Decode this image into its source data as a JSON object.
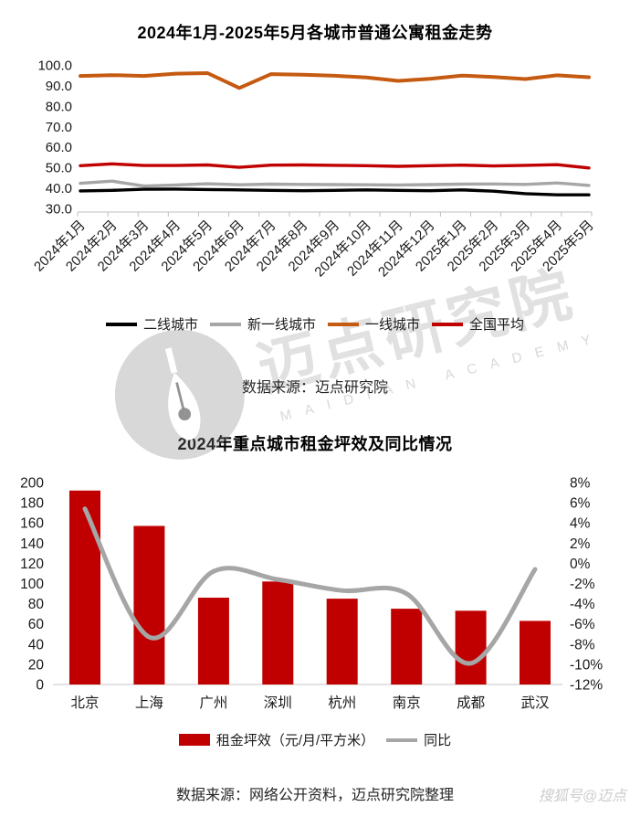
{
  "chart_data": [
    {
      "type": "line",
      "title": "2024年1月-2025年5月各城市普通公寓租金走势",
      "source": "数据来源：迈点研究院",
      "x_categories": [
        "2024年1月",
        "2024年2月",
        "2024年3月",
        "2024年4月",
        "2024年5月",
        "2024年6月",
        "2024年7月",
        "2024年8月",
        "2024年9月",
        "2024年10月",
        "2024年11月",
        "2024年12月",
        "2025年1月",
        "2025年2月",
        "2025年3月",
        "2025年4月",
        "2025年5月"
      ],
      "ylim": [
        30,
        100
      ],
      "y_tick_step": 10,
      "y_tick_labels": [
        "100.0",
        "90.0",
        "80.0",
        "70.0",
        "60.0",
        "50.0",
        "40.0",
        "30.0"
      ],
      "grid": false,
      "legend_position": "bottom",
      "series": [
        {
          "name": "二线城市",
          "color": "#000000",
          "values": [
            38.5,
            38.8,
            39.3,
            39.4,
            39.2,
            39.0,
            38.8,
            38.6,
            38.8,
            39.0,
            38.8,
            38.6,
            39.0,
            38.4,
            37.2,
            36.6,
            36.6
          ]
        },
        {
          "name": "新一线城市",
          "color": "#A6A6A6",
          "values": [
            42.2,
            43.3,
            40.9,
            41.4,
            42.0,
            41.5,
            41.8,
            41.7,
            41.6,
            41.5,
            41.4,
            41.6,
            41.8,
            41.9,
            41.7,
            42.4,
            41.2
          ]
        },
        {
          "name": "一线城市",
          "color": "#C55A11",
          "values": [
            94.6,
            95.0,
            94.6,
            95.7,
            96.0,
            88.7,
            95.5,
            95.2,
            94.7,
            93.9,
            92.2,
            93.2,
            94.8,
            94.1,
            93.1,
            94.9,
            94.0
          ]
        },
        {
          "name": "全国平均",
          "color": "#C00000",
          "values": [
            50.8,
            51.7,
            50.9,
            50.9,
            51.2,
            50.0,
            51.1,
            51.2,
            51.0,
            50.8,
            50.5,
            50.8,
            51.1,
            50.7,
            51.0,
            51.3,
            49.7
          ]
        }
      ]
    },
    {
      "type": "bar+line",
      "title": "2024年重点城市租金坪效及同比情况",
      "source": "数据来源：网络公开资料，迈点研究院整理",
      "categories": [
        "北京",
        "上海",
        "广州",
        "深圳",
        "杭州",
        "南京",
        "成都",
        "武汉"
      ],
      "bar_series": {
        "name": "租金坪效（元/月/平方米）",
        "color": "#C00000",
        "values": [
          192,
          157,
          86,
          102,
          85,
          75,
          73,
          63
        ]
      },
      "line_series": {
        "name": "同比",
        "color": "#A6A6A6",
        "unit": "%",
        "values": [
          5.4,
          -7.3,
          -0.8,
          -1.6,
          -2.7,
          -3.0,
          -9.9,
          -0.6
        ]
      },
      "left_axis": {
        "lim": [
          0,
          200
        ],
        "step": 20,
        "tick_labels": [
          "0",
          "20",
          "40",
          "60",
          "80",
          "100",
          "120",
          "140",
          "160",
          "180",
          "200"
        ]
      },
      "right_axis": {
        "lim": [
          -12,
          8
        ],
        "step": 2,
        "tick_labels": [
          "8%",
          "6%",
          "4%",
          "2%",
          "0%",
          "-2%",
          "-4%",
          "-6%",
          "-8%",
          "-10%",
          "-12%"
        ]
      },
      "grid": false,
      "legend_position": "bottom"
    }
  ],
  "watermarks": {
    "brand_text": "迈点研究院",
    "brand_subtext": "MAIDIAN ACADEMY",
    "corner_text": "搜狐号@迈点"
  }
}
